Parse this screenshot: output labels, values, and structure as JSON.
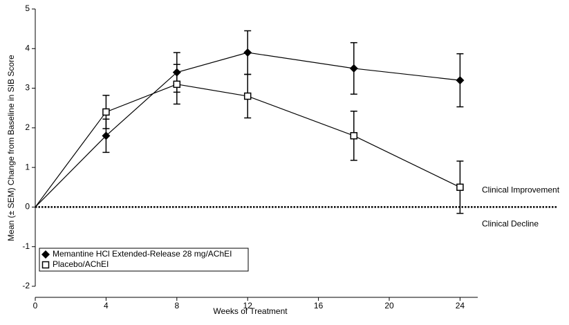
{
  "chart_data": {
    "type": "line",
    "x_label": "Weeks of Treatment",
    "y_label": "Mean (± SEM) Change from Baseline in SIB Score",
    "x": [
      0,
      4,
      8,
      12,
      18,
      24
    ],
    "series": [
      {
        "name": "Memantine HCl Extended-Release 28 mg/AChEI",
        "color": "#000000",
        "marker": "diamond",
        "values": [
          0,
          1.8,
          3.4,
          3.9,
          3.5,
          3.2
        ],
        "errors": [
          null,
          0.42,
          0.5,
          0.55,
          0.65,
          0.67
        ]
      },
      {
        "name": "Placebo/AChEI",
        "color": "#000000",
        "marker": "open-square",
        "values": [
          0,
          2.4,
          3.1,
          2.8,
          1.8,
          0.5
        ],
        "errors": [
          null,
          0.42,
          0.5,
          0.55,
          0.62,
          0.66
        ]
      }
    ],
    "xlim": [
      0,
      25
    ],
    "xticks": [
      0,
      4,
      8,
      12,
      16,
      20,
      24
    ],
    "ylim": [
      -2,
      5
    ],
    "yticks": [
      -2,
      -1,
      0,
      1,
      2,
      3,
      4,
      5
    ],
    "reference_line": 0,
    "annotations": [
      "Clinical Improvement",
      "Clinical Decline"
    ],
    "legend": "lower left",
    "grid": false
  }
}
